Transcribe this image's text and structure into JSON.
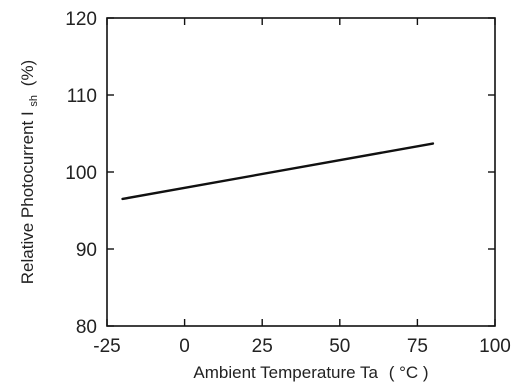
{
  "chart_data": {
    "type": "line",
    "xlabel": "Ambient Temperature Ta",
    "xunit": "( °C )",
    "ylabel_main": "Relative Photocurrent I",
    "ylabel_sub": "sh",
    "ylabel_unit": "(%)",
    "xlim": [
      -25,
      100
    ],
    "ylim": [
      80,
      120
    ],
    "x_ticks": [
      -25,
      0,
      25,
      50,
      75,
      100
    ],
    "y_ticks": [
      80,
      90,
      100,
      110,
      120
    ],
    "grid": false,
    "series": [
      {
        "x": [
          -20,
          80
        ],
        "y": [
          96.5,
          103.7
        ]
      }
    ],
    "line_color": "#111111"
  }
}
